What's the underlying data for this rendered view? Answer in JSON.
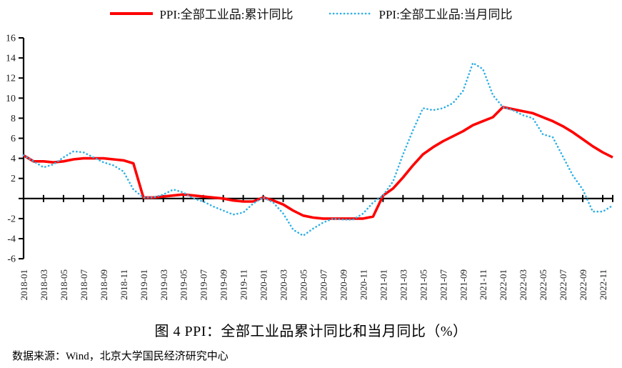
{
  "chart_data": {
    "type": "line",
    "title": "图 4 PPI：全部工业品累计同比和当月同比（%）",
    "source_note": "数据来源：Wind，北京大学国民经济研究中心",
    "legend_position": "top",
    "grid": false,
    "unit": "%",
    "ylim": [
      -6,
      16
    ],
    "ytick_step": 2,
    "ytick_labels": [
      "16",
      "14",
      "12",
      "10",
      "8",
      "6",
      "4",
      "2",
      "-2",
      "-4",
      "-6"
    ],
    "zero_tick_label_hidden": true,
    "axis_color": "#000000",
    "x_label_every": 2,
    "x_labels": [
      "2018-01",
      "2018-03",
      "2018-05",
      "2018-07",
      "2018-09",
      "2018-11",
      "2019-01",
      "2019-03",
      "2019-05",
      "2019-07",
      "2019-09",
      "2019-11",
      "2020-01",
      "2020-03",
      "2020-05",
      "2020-07",
      "2020-09",
      "2020-11",
      "2021-01",
      "2021-03",
      "2021-05",
      "2021-07",
      "2021-09",
      "2021-11",
      "2022-01",
      "2022-03",
      "2022-05",
      "2022-07",
      "2022-09",
      "2022-11"
    ],
    "x": [
      "2018-01",
      "2018-02",
      "2018-03",
      "2018-04",
      "2018-05",
      "2018-06",
      "2018-07",
      "2018-08",
      "2018-09",
      "2018-10",
      "2018-11",
      "2018-12",
      "2019-01",
      "2019-02",
      "2019-03",
      "2019-04",
      "2019-05",
      "2019-06",
      "2019-07",
      "2019-08",
      "2019-09",
      "2019-10",
      "2019-11",
      "2019-12",
      "2020-01",
      "2020-02",
      "2020-03",
      "2020-04",
      "2020-05",
      "2020-06",
      "2020-07",
      "2020-08",
      "2020-09",
      "2020-10",
      "2020-11",
      "2020-12",
      "2021-01",
      "2021-02",
      "2021-03",
      "2021-04",
      "2021-05",
      "2021-06",
      "2021-07",
      "2021-08",
      "2021-09",
      "2021-10",
      "2021-11",
      "2021-12",
      "2022-01",
      "2022-02",
      "2022-03",
      "2022-04",
      "2022-05",
      "2022-06",
      "2022-07",
      "2022-08",
      "2022-09",
      "2022-10",
      "2022-11",
      "2022-12"
    ],
    "series": [
      {
        "name": "PPI:全部工业品:累计同比",
        "color": "#fe0000",
        "line_style": "solid",
        "values": [
          4.3,
          3.7,
          3.7,
          3.6,
          3.7,
          3.9,
          4.0,
          4.0,
          4.0,
          3.9,
          3.8,
          3.5,
          0.1,
          0.1,
          0.2,
          0.3,
          0.4,
          0.3,
          0.2,
          0.1,
          0.0,
          -0.2,
          -0.3,
          -0.3,
          0.1,
          -0.2,
          -0.6,
          -1.2,
          -1.7,
          -1.9,
          -2.0,
          -2.0,
          -2.0,
          -2.0,
          -2.0,
          -1.8,
          0.3,
          1.0,
          2.1,
          3.3,
          4.4,
          5.1,
          5.7,
          6.2,
          6.7,
          7.3,
          7.7,
          8.1,
          9.1,
          8.9,
          8.7,
          8.5,
          8.1,
          7.7,
          7.2,
          6.6,
          5.9,
          5.2,
          4.6,
          4.1
        ]
      },
      {
        "name": "PPI:全部工业品:当月同比",
        "color": "#2fb0e5",
        "line_style": "dotted",
        "values": [
          4.3,
          3.7,
          3.1,
          3.4,
          4.1,
          4.7,
          4.6,
          4.1,
          3.6,
          3.3,
          2.7,
          0.9,
          0.1,
          0.1,
          0.4,
          0.9,
          0.6,
          0.0,
          -0.3,
          -0.8,
          -1.2,
          -1.6,
          -1.4,
          -0.5,
          0.1,
          -0.4,
          -1.5,
          -3.1,
          -3.7,
          -3.0,
          -2.4,
          -2.0,
          -2.1,
          -2.1,
          -1.5,
          -0.4,
          0.3,
          1.7,
          4.4,
          6.8,
          9.0,
          8.8,
          9.0,
          9.5,
          10.7,
          13.5,
          12.9,
          10.3,
          9.1,
          8.8,
          8.3,
          8.0,
          6.4,
          6.1,
          4.2,
          2.3,
          0.9,
          -1.3,
          -1.3,
          -0.7
        ]
      }
    ]
  }
}
